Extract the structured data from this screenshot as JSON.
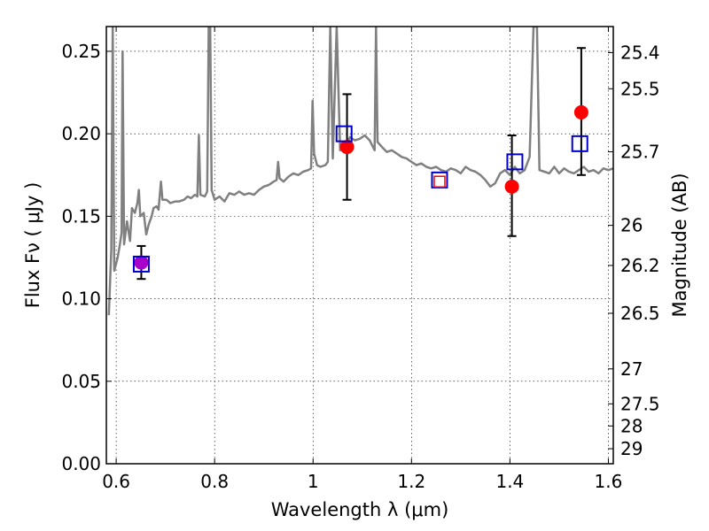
{
  "chart_data": {
    "type": "line",
    "xlabel": "Wavelength  λ (μm)",
    "ylabel": "Flux  Fν  ( μJy )",
    "ylabel_right": "Magnitude (AB)",
    "xlim": [
      0.58,
      1.61
    ],
    "ylim": [
      0.0,
      0.265
    ],
    "grid": true,
    "x_ticks": [
      0.6,
      0.8,
      1.0,
      1.2,
      1.4,
      1.6
    ],
    "x_tick_labels": [
      "0.6",
      "0.8",
      "1",
      "1.2",
      "1.4",
      "1.6"
    ],
    "y_ticks": [
      0.0,
      0.05,
      0.1,
      0.15,
      0.2,
      0.25
    ],
    "y_tick_labels": [
      "0.00",
      "0.05",
      "0.10",
      "0.15",
      "0.20",
      "0.25"
    ],
    "right_ticks": [
      {
        "flux": 0.2492,
        "label": "25.4"
      },
      {
        "flux": 0.2273,
        "label": "25.5"
      },
      {
        "flux": 0.1891,
        "label": "25.7"
      },
      {
        "flux": 0.1445,
        "label": "26"
      },
      {
        "flux": 0.1202,
        "label": "26.2"
      },
      {
        "flux": 0.0912,
        "label": "26.5"
      },
      {
        "flux": 0.0575,
        "label": "27"
      },
      {
        "flux": 0.0363,
        "label": "27.5"
      },
      {
        "flux": 0.0229,
        "label": "28"
      },
      {
        "flux": 0.0091,
        "label": "29"
      }
    ],
    "spectrum": {
      "color": "#808080",
      "points": [
        [
          0.585,
          0.09
        ],
        [
          0.59,
          0.13
        ],
        [
          0.593,
          0.265
        ],
        [
          0.596,
          0.117
        ],
        [
          0.603,
          0.125
        ],
        [
          0.607,
          0.132
        ],
        [
          0.611,
          0.14
        ],
        [
          0.613,
          0.25
        ],
        [
          0.616,
          0.133
        ],
        [
          0.622,
          0.147
        ],
        [
          0.628,
          0.135
        ],
        [
          0.632,
          0.155
        ],
        [
          0.638,
          0.152
        ],
        [
          0.643,
          0.158
        ],
        [
          0.646,
          0.166
        ],
        [
          0.649,
          0.15
        ],
        [
          0.656,
          0.152
        ],
        [
          0.661,
          0.139
        ],
        [
          0.666,
          0.145
        ],
        [
          0.672,
          0.15
        ],
        [
          0.676,
          0.155
        ],
        [
          0.682,
          0.156
        ],
        [
          0.686,
          0.154
        ],
        [
          0.691,
          0.171
        ],
        [
          0.694,
          0.16
        ],
        [
          0.702,
          0.16
        ],
        [
          0.71,
          0.158
        ],
        [
          0.72,
          0.159
        ],
        [
          0.728,
          0.159
        ],
        [
          0.738,
          0.16
        ],
        [
          0.745,
          0.162
        ],
        [
          0.752,
          0.161
        ],
        [
          0.76,
          0.163
        ],
        [
          0.765,
          0.162
        ],
        [
          0.768,
          0.199
        ],
        [
          0.771,
          0.163
        ],
        [
          0.78,
          0.162
        ],
        [
          0.785,
          0.165
        ],
        [
          0.788,
          0.265
        ],
        [
          0.791,
          0.265
        ],
        [
          0.794,
          0.166
        ],
        [
          0.8,
          0.16
        ],
        [
          0.81,
          0.162
        ],
        [
          0.82,
          0.159
        ],
        [
          0.83,
          0.164
        ],
        [
          0.84,
          0.163
        ],
        [
          0.85,
          0.165
        ],
        [
          0.86,
          0.163
        ],
        [
          0.87,
          0.164
        ],
        [
          0.88,
          0.163
        ],
        [
          0.89,
          0.166
        ],
        [
          0.9,
          0.168
        ],
        [
          0.91,
          0.169
        ],
        [
          0.92,
          0.171
        ],
        [
          0.926,
          0.172
        ],
        [
          0.929,
          0.183
        ],
        [
          0.932,
          0.173
        ],
        [
          0.94,
          0.171
        ],
        [
          0.95,
          0.174
        ],
        [
          0.96,
          0.176
        ],
        [
          0.97,
          0.175
        ],
        [
          0.98,
          0.177
        ],
        [
          0.99,
          0.178
        ],
        [
          0.996,
          0.179
        ],
        [
          0.999,
          0.22
        ],
        [
          1.002,
          0.188
        ],
        [
          1.008,
          0.181
        ],
        [
          1.015,
          0.18
        ],
        [
          1.025,
          0.181
        ],
        [
          1.03,
          0.183
        ],
        [
          1.035,
          0.265
        ],
        [
          1.04,
          0.185
        ],
        [
          1.048,
          0.265
        ],
        [
          1.055,
          0.19
        ],
        [
          1.065,
          0.192
        ],
        [
          1.075,
          0.198
        ],
        [
          1.085,
          0.196
        ],
        [
          1.095,
          0.197
        ],
        [
          1.105,
          0.199
        ],
        [
          1.115,
          0.196
        ],
        [
          1.125,
          0.19
        ],
        [
          1.128,
          0.265
        ],
        [
          1.131,
          0.195
        ],
        [
          1.14,
          0.192
        ],
        [
          1.15,
          0.189
        ],
        [
          1.16,
          0.19
        ],
        [
          1.17,
          0.188
        ],
        [
          1.18,
          0.186
        ],
        [
          1.19,
          0.185
        ],
        [
          1.2,
          0.183
        ],
        [
          1.21,
          0.181
        ],
        [
          1.22,
          0.182
        ],
        [
          1.23,
          0.18
        ],
        [
          1.24,
          0.179
        ],
        [
          1.25,
          0.18
        ],
        [
          1.26,
          0.178
        ],
        [
          1.27,
          0.177
        ],
        [
          1.28,
          0.179
        ],
        [
          1.29,
          0.178
        ],
        [
          1.3,
          0.176
        ],
        [
          1.31,
          0.18
        ],
        [
          1.32,
          0.178
        ],
        [
          1.33,
          0.177
        ],
        [
          1.34,
          0.175
        ],
        [
          1.35,
          0.172
        ],
        [
          1.36,
          0.168
        ],
        [
          1.37,
          0.17
        ],
        [
          1.38,
          0.176
        ],
        [
          1.39,
          0.178
        ],
        [
          1.4,
          0.175
        ],
        [
          1.41,
          0.18
        ],
        [
          1.42,
          0.176
        ],
        [
          1.43,
          0.178
        ],
        [
          1.44,
          0.186
        ],
        [
          1.448,
          0.265
        ],
        [
          1.455,
          0.265
        ],
        [
          1.46,
          0.178
        ],
        [
          1.47,
          0.177
        ],
        [
          1.48,
          0.176
        ],
        [
          1.49,
          0.18
        ],
        [
          1.5,
          0.176
        ],
        [
          1.51,
          0.179
        ],
        [
          1.52,
          0.177
        ],
        [
          1.53,
          0.176
        ],
        [
          1.54,
          0.178
        ],
        [
          1.55,
          0.18
        ],
        [
          1.56,
          0.177
        ],
        [
          1.57,
          0.178
        ],
        [
          1.58,
          0.176
        ],
        [
          1.59,
          0.179
        ],
        [
          1.6,
          0.178
        ],
        [
          1.61,
          0.179
        ]
      ]
    },
    "observed": {
      "color": "#ff0000",
      "points": [
        {
          "x": 0.651,
          "y": 0.122,
          "yerr_low": 0.112,
          "yerr_high": 0.132
        },
        {
          "x": 1.069,
          "y": 0.192,
          "yerr_low": 0.16,
          "yerr_high": 0.224
        },
        {
          "x": 1.404,
          "y": 0.168,
          "yerr_low": 0.138,
          "yerr_high": 0.199
        },
        {
          "x": 1.545,
          "y": 0.213,
          "yerr_low": 0.175,
          "yerr_high": 0.252
        }
      ]
    },
    "overlap_marker": {
      "color": "#aa00cc",
      "x": 0.651,
      "y": 0.122
    },
    "model": {
      "color": "#0000cc",
      "points": [
        {
          "x": 0.651,
          "y": 0.121
        },
        {
          "x": 1.063,
          "y": 0.2
        },
        {
          "x": 1.257,
          "y": 0.172
        },
        {
          "x": 1.41,
          "y": 0.183
        },
        {
          "x": 1.542,
          "y": 0.194
        }
      ]
    },
    "small_marker": {
      "color": "#ff0000",
      "x": 1.257,
      "y": 0.171
    }
  }
}
